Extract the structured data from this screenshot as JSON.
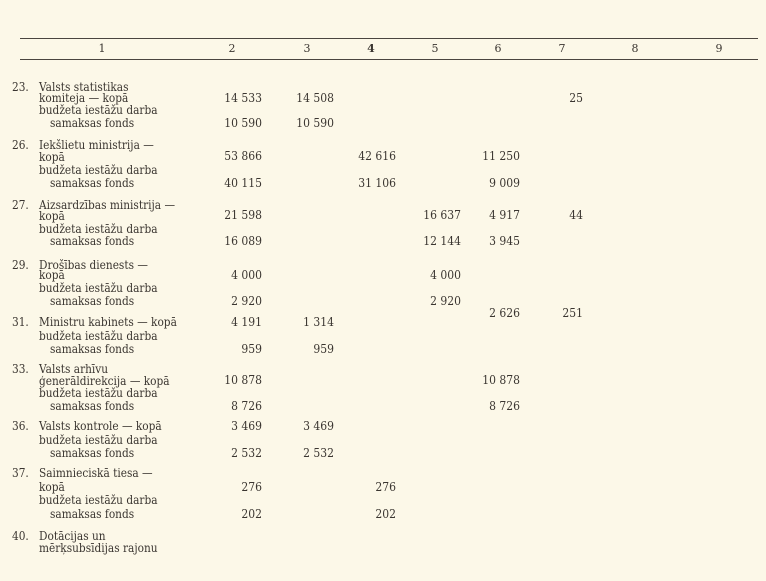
{
  "header": [
    "1",
    "2",
    "3",
    "4",
    "5",
    "6",
    "7",
    "8",
    "9"
  ],
  "entries": [
    {
      "num": "23.",
      "lines": [
        "Valsts statistikas",
        "komiteja — kopā",
        "budžeta iestāžu darba",
        "samaksas fonds"
      ],
      "kopa": {
        "c2": "14 533",
        "c3": "14 508",
        "c7": "25"
      },
      "fonds": {
        "c2": "10 590",
        "c3": "10 590"
      }
    },
    {
      "num": "26.",
      "lines": [
        "Iekšlietu ministrija —",
        "kopā",
        "budžeta iestāžu darba",
        "samaksas fonds"
      ],
      "kopa": {
        "c2": "53 866",
        "c4": "42 616",
        "c6": "11 250"
      },
      "fonds": {
        "c2": "40 115",
        "c4": "31 106",
        "c6": "9 009"
      }
    },
    {
      "num": "27.",
      "lines": [
        "Aizsardzības ministrija —",
        "kopā",
        "budžeta iestāžu darba",
        "samaksas fonds"
      ],
      "kopa": {
        "c2": "21 598",
        "c5": "16 637",
        "c6": "4 917",
        "c7": "44"
      },
      "fonds": {
        "c2": "16 089",
        "c5": "12 144",
        "c6": "3 945"
      }
    },
    {
      "num": "29.",
      "lines": [
        "Drošības dienests —",
        "kopā",
        "budžeta iestāžu darba",
        "samaksas fonds"
      ],
      "kopa": {
        "c2": "4 000",
        "c5": "4 000"
      },
      "fonds": {
        "c2": "2 920",
        "c5": "2 920"
      },
      "extra": {
        "c6": "2 626",
        "c7": "251"
      }
    },
    {
      "num": "31.",
      "lines": [
        "Ministru kabinets — kopā",
        "budžeta iestāžu darba",
        "samaksas fonds"
      ],
      "kopa": {
        "c2": "4 191",
        "c3": "1 314"
      },
      "fonds": {
        "c2": "959",
        "c3": "959"
      }
    },
    {
      "num": "33.",
      "lines": [
        "Valsts arhīvu",
        "ģenerāldirekcija — kopā",
        "budžeta iestāžu darba",
        "samaksas fonds"
      ],
      "kopa": {
        "c2": "10 878",
        "c6": "10 878"
      },
      "fonds": {
        "c2": "8 726",
        "c6": "8 726"
      }
    },
    {
      "num": "36.",
      "lines": [
        "Valsts kontrole — kopā",
        "budžeta iestāžu darba",
        "samaksas fonds"
      ],
      "kopa": {
        "c2": "3 469",
        "c3": "3 469"
      },
      "fonds": {
        "c2": "2 532",
        "c3": "2 532"
      }
    },
    {
      "num": "37.",
      "lines": [
        "Saimnieciskā tiesa —",
        "kopā",
        "budžeta iestāžu darba",
        "samaksas fonds"
      ],
      "kopa": {
        "c2": "276",
        "c4": "276"
      },
      "fonds": {
        "c2": "202",
        "c4": "202"
      }
    },
    {
      "num": "40.",
      "lines": [
        "Dotācijas un",
        "mērķsubsīdijas rajonu"
      ]
    }
  ]
}
